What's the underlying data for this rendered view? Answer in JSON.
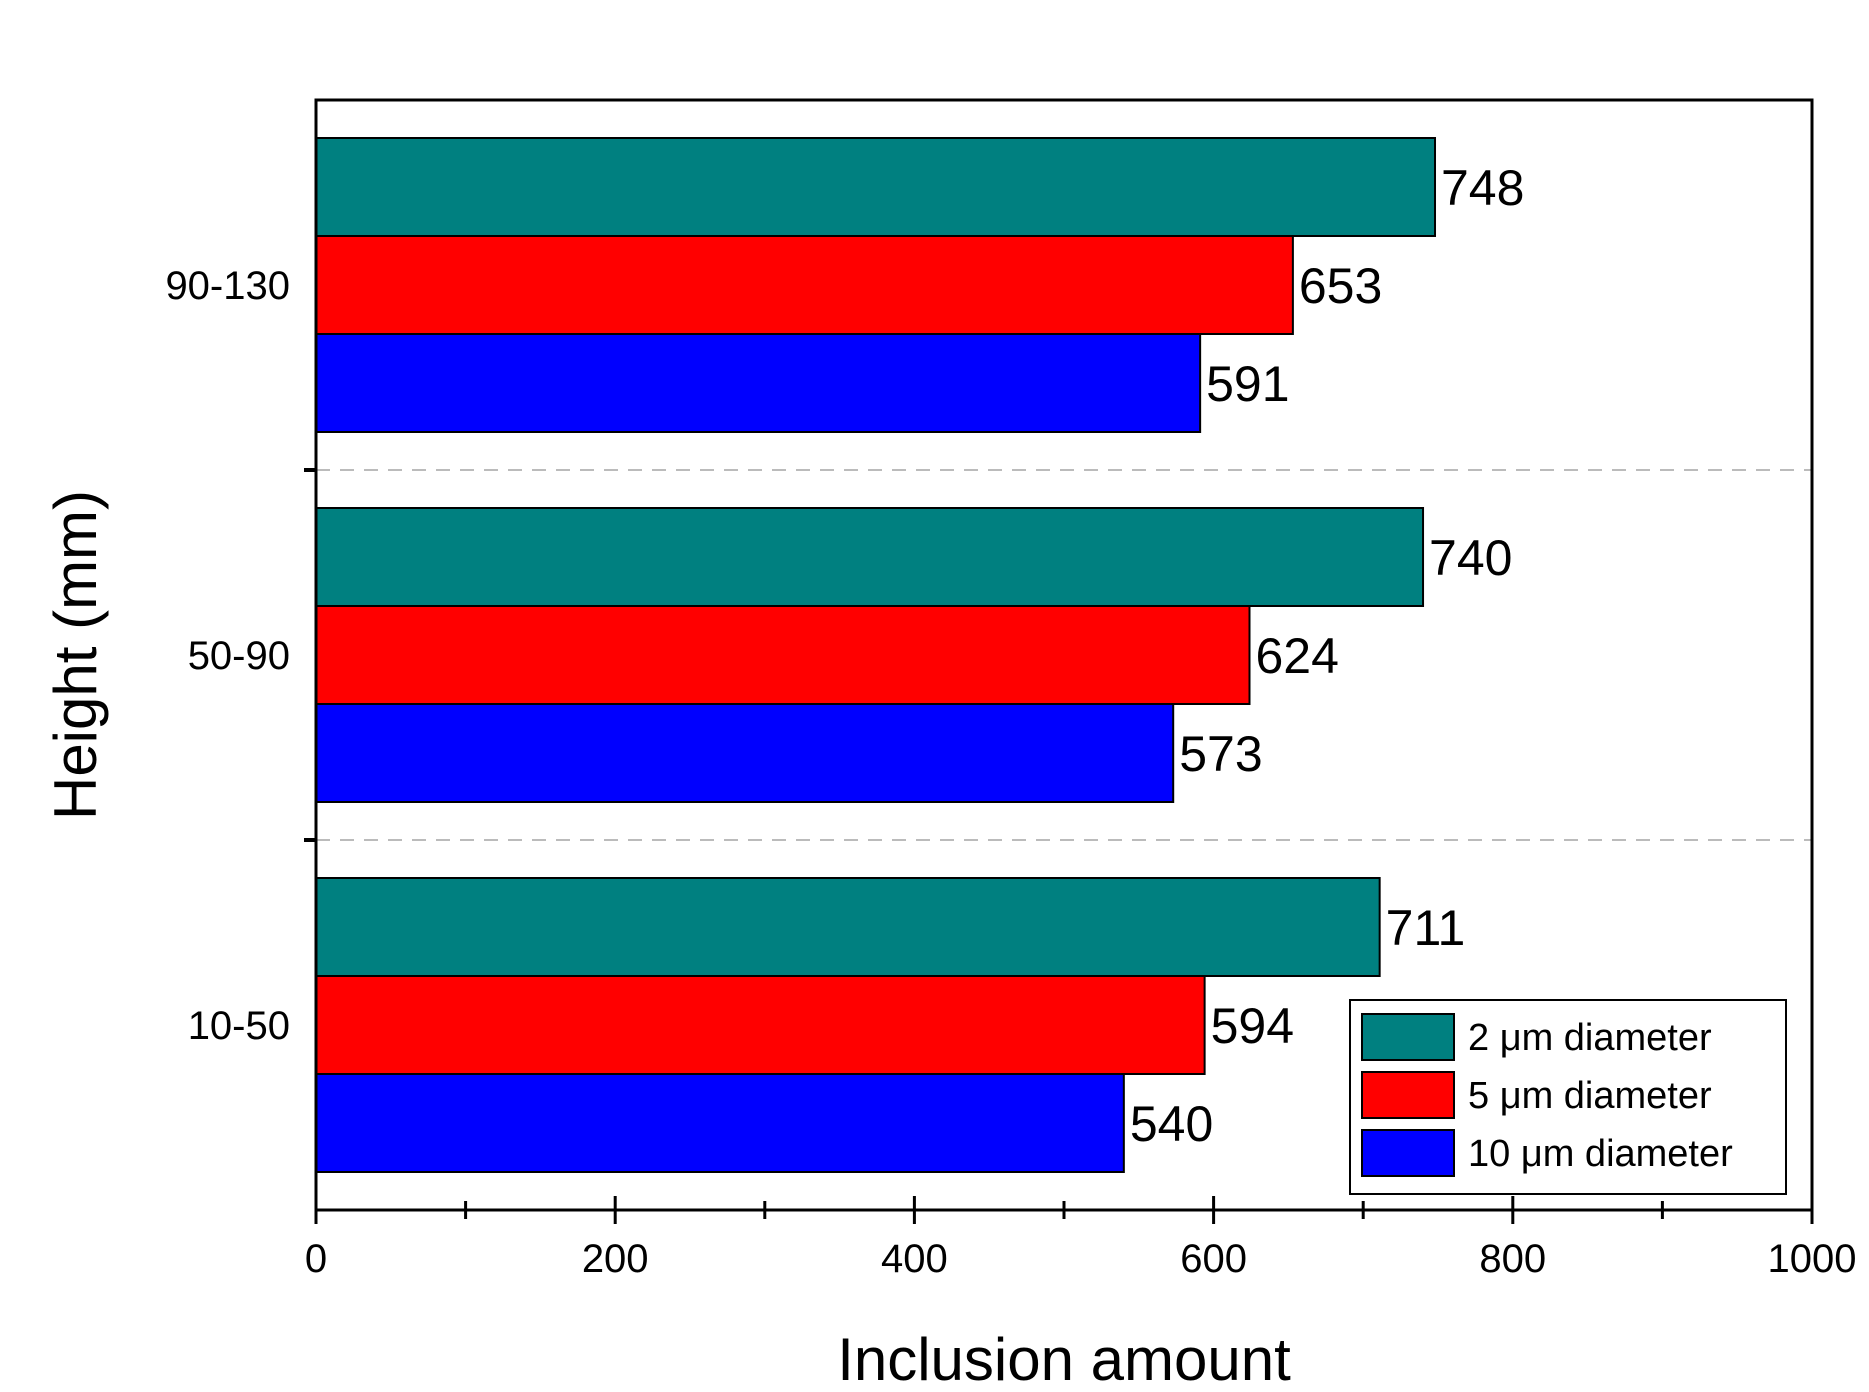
{
  "chart_data": {
    "type": "bar",
    "orientation": "horizontal",
    "title": "",
    "xlabel": "Inclusion amount",
    "ylabel": "Height (mm)",
    "xlim": [
      0,
      1000
    ],
    "xticks": [
      0,
      200,
      400,
      600,
      800,
      1000
    ],
    "categories": [
      "10-50",
      "50-90",
      "90-130"
    ],
    "series": [
      {
        "name": "2 μm diameter",
        "color": "#008080",
        "values": [
          711,
          740,
          748
        ],
        "labels": [
          "711",
          "740",
          "748"
        ]
      },
      {
        "name": "5 μm diameter",
        "color": "#ff0000",
        "values": [
          594,
          624,
          653
        ],
        "labels": [
          "594",
          "624",
          "653"
        ]
      },
      {
        "name": "10 μm diameter",
        "color": "#0000ff",
        "values": [
          540,
          573,
          591
        ],
        "labels": [
          "540",
          "573",
          "591"
        ]
      }
    ],
    "grid": "dashed separators between categories",
    "legend_position": "bottom-right"
  }
}
